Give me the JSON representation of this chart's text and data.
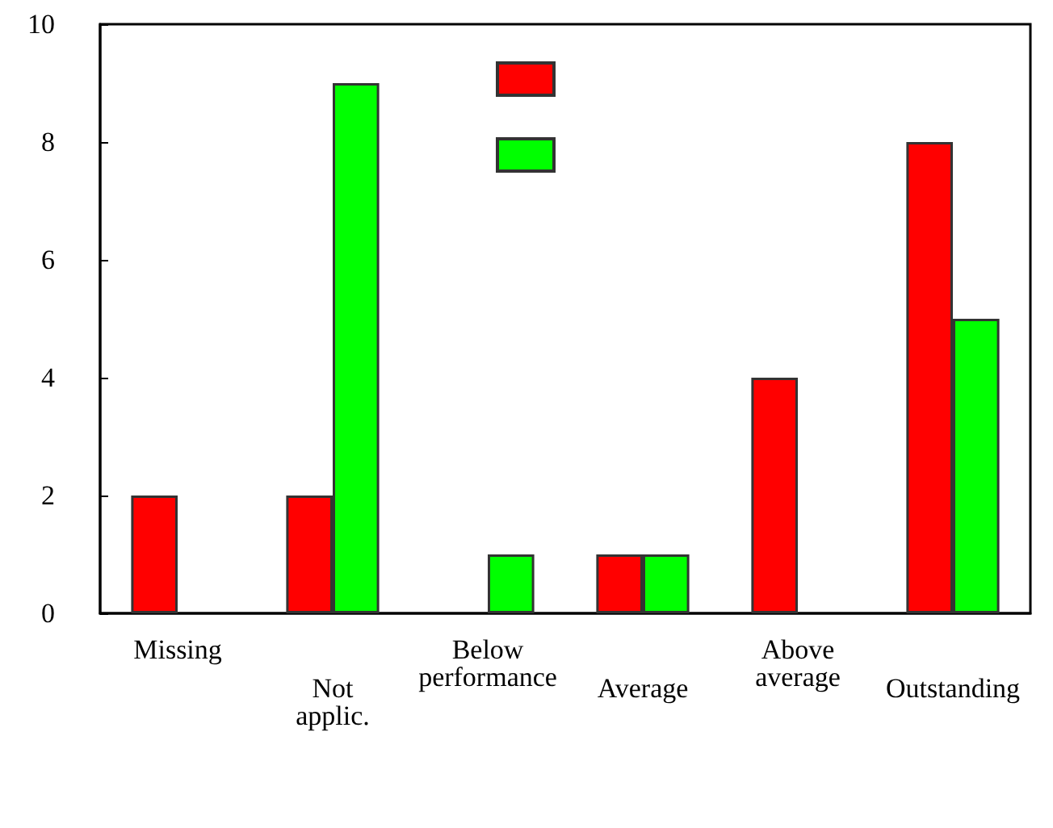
{
  "chart_data": {
    "type": "bar",
    "categories": [
      "Missing",
      "Not applic.",
      "Below performance",
      "Average",
      "Above average",
      "Outstanding"
    ],
    "series": [
      {
        "color": "#ff0000",
        "values": [
          2,
          2,
          0,
          1,
          4,
          8
        ]
      },
      {
        "color": "#00ff00",
        "values": [
          0,
          9,
          1,
          1,
          0,
          5
        ]
      }
    ],
    "ylim": [
      0,
      10
    ],
    "yticks": [
      0,
      2,
      4,
      6,
      8,
      10
    ],
    "grid": false
  }
}
